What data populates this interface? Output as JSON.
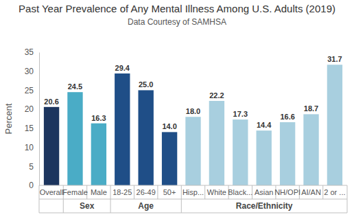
{
  "chart_data": {
    "type": "bar",
    "title": "Past Year Prevalence of Any Mental Illness Among U.S. Adults (2019)",
    "subtitle": "Data Courtesy of SAMHSA",
    "y_label": "Percent",
    "categories": [
      "Overall",
      "Female",
      "Male",
      "18-25",
      "26-49",
      "50+",
      "Hisp...",
      "White",
      "Black...",
      "Asian",
      "NH/OPI",
      "AI/AN",
      "2 or ..."
    ],
    "category_groups": [
      null,
      "Sex",
      "Sex",
      "Age",
      "Age",
      "Age",
      "Race/Ethnicity",
      "Race/Ethnicity",
      "Race/Ethnicity",
      "Race/Ethnicity",
      "Race/Ethnicity",
      "Race/Ethnicity",
      "Race/Ethnicity"
    ],
    "values": [
      20.6,
      24.5,
      16.3,
      29.4,
      25.0,
      14.0,
      18.0,
      22.2,
      17.3,
      14.4,
      16.6,
      18.7,
      31.7
    ],
    "value_labels": [
      "20.6",
      "24.5",
      "16.3",
      "29.4",
      "25.0",
      "14.0",
      "18.0",
      "22.2",
      "17.3",
      "14.4",
      "16.6",
      "18.7",
      "31.7"
    ],
    "colors": [
      "#1c355e",
      "#4aacc6",
      "#4aacc6",
      "#1f4e87",
      "#1f4e87",
      "#1f4e87",
      "#a8cfdf",
      "#a8cfdf",
      "#a8cfdf",
      "#a8cfdf",
      "#a8cfdf",
      "#a8cfdf",
      "#a8cfdf"
    ],
    "ylim": [
      0,
      35
    ],
    "yticks": [
      0,
      5,
      10,
      15,
      20,
      25,
      30,
      35
    ],
    "grid": false,
    "data_labels": true
  }
}
